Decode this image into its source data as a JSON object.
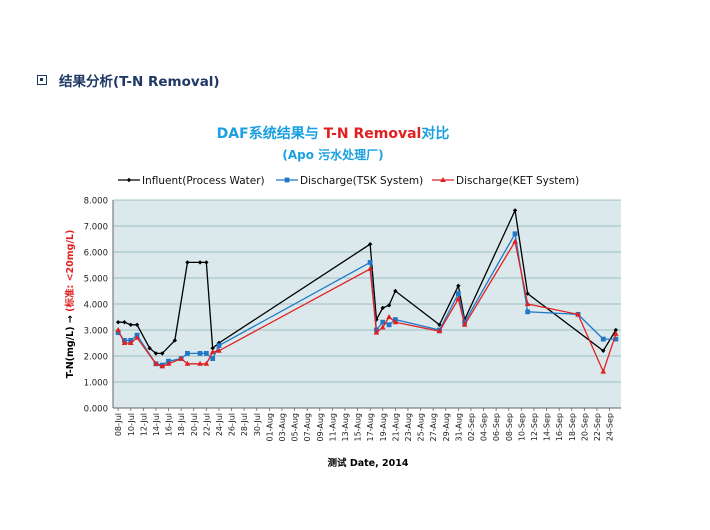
{
  "section": {
    "title": "结果分析(T-N Removal)"
  },
  "colors": {
    "influent": "#000000",
    "tsk": "#1f78c8",
    "ket": "#e02020",
    "plot_bg": "#dbe9ec",
    "grid": "#8ab2b8",
    "title_blue": "#1aa0e0",
    "title_red": "#e02020",
    "ylabel_red": "#e02020"
  },
  "chart_data": {
    "type": "line",
    "title_parts": [
      "DAF系统结果与 ",
      "T-N Removal",
      "对比"
    ],
    "subtitle": "(Apo 污水处理厂)",
    "xlabel": "测试 Date, 2014",
    "ylabel_parts": [
      "T-N(mg/L) → ",
      "(标准: <20mg/L)"
    ],
    "ylim": [
      0,
      8
    ],
    "yticks": [
      "0.000",
      "1.000",
      "2.000",
      "3.000",
      "4.000",
      "5.000",
      "6.000",
      "7.000",
      "8.000"
    ],
    "grid": true,
    "legend_position": "top",
    "xticks": [
      "08-Jul",
      "10-Jul",
      "12-Jul",
      "14-Jul",
      "16-Jul",
      "18-Jul",
      "20-Jul",
      "22-Jul",
      "24-Jul",
      "26-Jul",
      "28-Jul",
      "30-Jul",
      "01-Aug",
      "03-Aug",
      "05-Aug",
      "07-Aug",
      "09-Aug",
      "11-Aug",
      "13-Aug",
      "15-Aug",
      "17-Aug",
      "19-Aug",
      "21-Aug",
      "23-Aug",
      "25-Aug",
      "27-Aug",
      "29-Aug",
      "31-Aug",
      "02-Sep",
      "04-Sep",
      "06-Sep",
      "08-Sep",
      "10-Sep",
      "12-Sep",
      "14-Sep",
      "16-Sep",
      "18-Sep",
      "20-Sep",
      "22-Sep",
      "24-Sep"
    ],
    "series": [
      {
        "name": "Influent(Process Water)",
        "marker": "diamond",
        "points": [
          [
            "08-Jul",
            3.3
          ],
          [
            "09-Jul",
            3.3
          ],
          [
            "10-Jul",
            3.2
          ],
          [
            "11-Jul",
            3.2
          ],
          [
            "13-Jul",
            2.3
          ],
          [
            "14-Jul",
            2.1
          ],
          [
            "15-Jul",
            2.1
          ],
          [
            "17-Jul",
            2.6
          ],
          [
            "19-Jul",
            5.6
          ],
          [
            "21-Jul",
            5.6
          ],
          [
            "22-Jul",
            5.6
          ],
          [
            "23-Jul",
            2.3
          ],
          [
            "24-Jul",
            2.5
          ],
          [
            "17-Aug",
            6.3
          ],
          [
            "18-Aug",
            3.4
          ],
          [
            "19-Aug",
            3.85
          ],
          [
            "20-Aug",
            3.95
          ],
          [
            "21-Aug",
            4.5
          ],
          [
            "28-Aug",
            3.2
          ],
          [
            "31-Aug",
            4.7
          ],
          [
            "01-Sep",
            3.4
          ],
          [
            "09-Sep",
            7.6
          ],
          [
            "11-Sep",
            4.4
          ],
          [
            "23-Sep",
            2.2
          ],
          [
            "25-Sep",
            3.0
          ]
        ]
      },
      {
        "name": "Discharge(TSK System)",
        "marker": "square",
        "points": [
          [
            "08-Jul",
            2.9
          ],
          [
            "09-Jul",
            2.6
          ],
          [
            "10-Jul",
            2.6
          ],
          [
            "11-Jul",
            2.8
          ],
          [
            "14-Jul",
            1.7
          ],
          [
            "15-Jul",
            1.65
          ],
          [
            "16-Jul",
            1.8
          ],
          [
            "18-Jul",
            1.9
          ],
          [
            "19-Jul",
            2.1
          ],
          [
            "21-Jul",
            2.1
          ],
          [
            "22-Jul",
            2.1
          ],
          [
            "23-Jul",
            1.9
          ],
          [
            "24-Jul",
            2.4
          ],
          [
            "17-Aug",
            5.6
          ],
          [
            "18-Aug",
            3.0
          ],
          [
            "19-Aug",
            3.3
          ],
          [
            "20-Aug",
            3.2
          ],
          [
            "21-Aug",
            3.4
          ],
          [
            "28-Aug",
            3.0
          ],
          [
            "31-Aug",
            4.4
          ],
          [
            "01-Sep",
            3.3
          ],
          [
            "09-Sep",
            6.7
          ],
          [
            "11-Sep",
            3.7
          ],
          [
            "19-Sep",
            3.6
          ],
          [
            "23-Sep",
            2.65
          ],
          [
            "25-Sep",
            2.65
          ]
        ]
      },
      {
        "name": "Discharge(KET System)",
        "marker": "triangle",
        "points": [
          [
            "08-Jul",
            3.0
          ],
          [
            "09-Jul",
            2.5
          ],
          [
            "10-Jul",
            2.5
          ],
          [
            "11-Jul",
            2.7
          ],
          [
            "14-Jul",
            1.7
          ],
          [
            "15-Jul",
            1.6
          ],
          [
            "16-Jul",
            1.7
          ],
          [
            "18-Jul",
            1.9
          ],
          [
            "19-Jul",
            1.7
          ],
          [
            "21-Jul",
            1.7
          ],
          [
            "22-Jul",
            1.7
          ],
          [
            "23-Jul",
            2.15
          ],
          [
            "24-Jul",
            2.2
          ],
          [
            "17-Aug",
            5.35
          ],
          [
            "18-Aug",
            2.9
          ],
          [
            "19-Aug",
            3.1
          ],
          [
            "20-Aug",
            3.5
          ],
          [
            "21-Aug",
            3.3
          ],
          [
            "28-Aug",
            2.95
          ],
          [
            "31-Aug",
            4.2
          ],
          [
            "01-Sep",
            3.2
          ],
          [
            "09-Sep",
            6.4
          ],
          [
            "11-Sep",
            4.0
          ],
          [
            "19-Sep",
            3.6
          ],
          [
            "23-Sep",
            1.4
          ],
          [
            "25-Sep",
            2.85
          ]
        ]
      }
    ]
  }
}
